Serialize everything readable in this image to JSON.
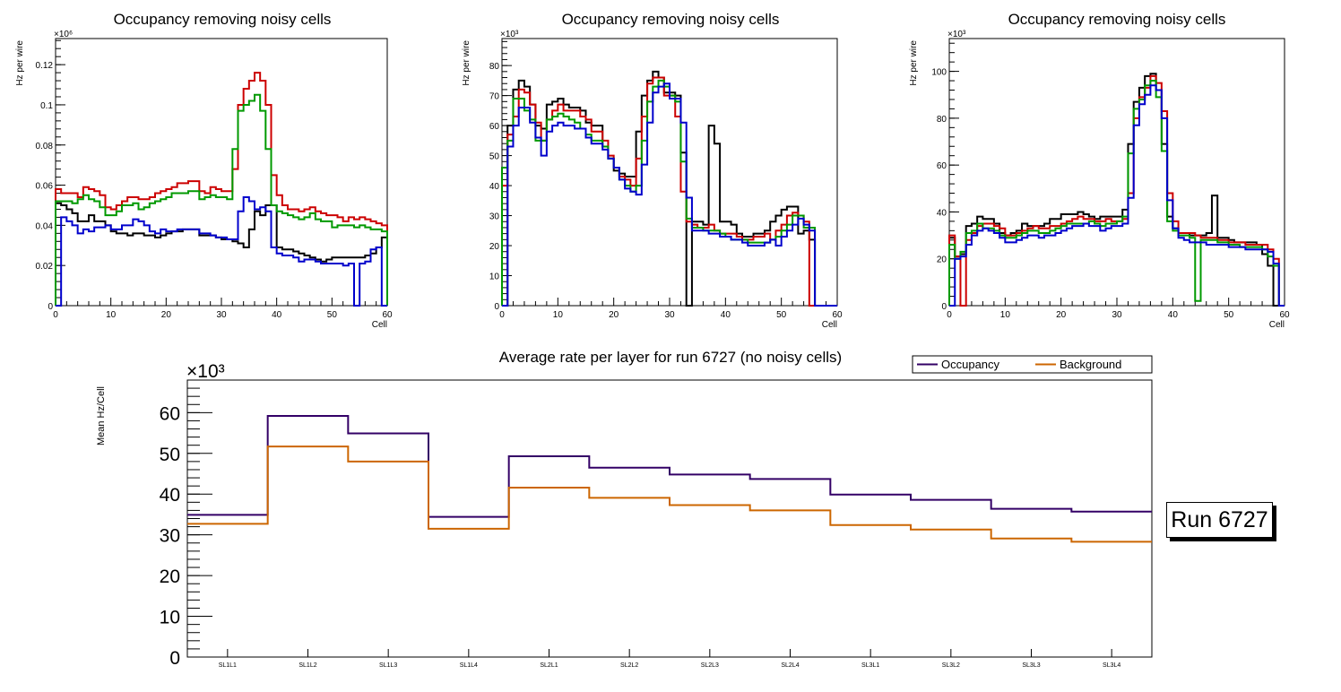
{
  "chart_data": [
    {
      "type": "line",
      "subtype": "step-histogram",
      "title": "Occupancy removing noisy cells",
      "xlabel": "Cell",
      "ylabel": "Hz per wire",
      "y_multiplier_label": "×10⁶",
      "xlim": [
        0,
        60
      ],
      "ylim": [
        0,
        0.133
      ],
      "x_ticks": [
        0,
        10,
        20,
        30,
        40,
        50,
        60
      ],
      "y_ticks": [
        0,
        0.02,
        0.04,
        0.06,
        0.08,
        0.1,
        0.12
      ],
      "y_tick_labels": [
        "0",
        "0.02",
        "0.04",
        "0.06",
        "0.08",
        "0.1",
        "0.12"
      ],
      "series": [
        {
          "name": "black",
          "color": "#000000",
          "values": [
            0.051,
            0.05,
            0.048,
            0.046,
            0.042,
            0.042,
            0.045,
            0.042,
            0.042,
            0.04,
            0.037,
            0.036,
            0.036,
            0.035,
            0.036,
            0.036,
            0.035,
            0.035,
            0.034,
            0.035,
            0.036,
            0.037,
            0.037,
            0.038,
            0.038,
            0.038,
            0.035,
            0.035,
            0.035,
            0.034,
            0.033,
            0.033,
            0.032,
            0.031,
            0.029,
            0.038,
            0.047,
            0.045,
            0.05,
            0.05,
            0.029,
            0.028,
            0.028,
            0.027,
            0.026,
            0.025,
            0.024,
            0.023,
            0.022,
            0.023,
            0.024,
            0.024,
            0.024,
            0.024,
            0.024,
            0.024,
            0.025,
            0.026,
            0.029,
            0.034
          ]
        },
        {
          "name": "red",
          "color": "#cc0000",
          "values": [
            0.058,
            0.056,
            0.056,
            0.056,
            0.054,
            0.059,
            0.058,
            0.057,
            0.055,
            0.049,
            0.048,
            0.05,
            0.052,
            0.054,
            0.054,
            0.053,
            0.053,
            0.054,
            0.056,
            0.057,
            0.058,
            0.059,
            0.061,
            0.061,
            0.062,
            0.062,
            0.057,
            0.056,
            0.059,
            0.058,
            0.057,
            0.057,
            0.068,
            0.1,
            0.108,
            0.112,
            0.116,
            0.112,
            0.1,
            0.065,
            0.055,
            0.05,
            0.048,
            0.048,
            0.047,
            0.048,
            0.049,
            0.047,
            0.046,
            0.045,
            0.045,
            0.044,
            0.042,
            0.044,
            0.043,
            0.044,
            0.043,
            0.042,
            0.041,
            0.04
          ]
        },
        {
          "name": "green",
          "color": "#009900",
          "values": [
            0.052,
            0.052,
            0.052,
            0.051,
            0.053,
            0.055,
            0.053,
            0.052,
            0.049,
            0.045,
            0.045,
            0.047,
            0.05,
            0.05,
            0.051,
            0.048,
            0.049,
            0.051,
            0.052,
            0.053,
            0.054,
            0.056,
            0.056,
            0.056,
            0.057,
            0.057,
            0.053,
            0.054,
            0.055,
            0.054,
            0.054,
            0.053,
            0.078,
            0.097,
            0.1,
            0.102,
            0.105,
            0.097,
            0.078,
            0.05,
            0.047,
            0.046,
            0.045,
            0.044,
            0.043,
            0.044,
            0.046,
            0.043,
            0.042,
            0.042,
            0.039,
            0.04,
            0.04,
            0.04,
            0.039,
            0.04,
            0.039,
            0.038,
            0.038,
            0.037
          ]
        },
        {
          "name": "blue",
          "color": "#0000cc",
          "values": [
            0.0,
            0.044,
            0.042,
            0.04,
            0.036,
            0.038,
            0.037,
            0.039,
            0.039,
            0.04,
            0.038,
            0.038,
            0.04,
            0.04,
            0.043,
            0.042,
            0.04,
            0.037,
            0.036,
            0.038,
            0.037,
            0.037,
            0.038,
            0.038,
            0.038,
            0.038,
            0.036,
            0.036,
            0.035,
            0.034,
            0.034,
            0.033,
            0.033,
            0.047,
            0.054,
            0.052,
            0.048,
            0.049,
            0.047,
            0.029,
            0.026,
            0.025,
            0.025,
            0.024,
            0.022,
            0.023,
            0.023,
            0.022,
            0.021,
            0.021,
            0.021,
            0.021,
            0.02,
            0.021,
            0.0,
            0.021,
            0.022,
            0.028,
            0.029,
            0.0
          ]
        }
      ]
    },
    {
      "type": "line",
      "subtype": "step-histogram",
      "title": "Occupancy removing noisy cells",
      "xlabel": "Cell",
      "ylabel": "Hz per wire",
      "y_multiplier_label": "×10³",
      "xlim": [
        0,
        60
      ],
      "ylim": [
        0,
        89
      ],
      "x_ticks": [
        0,
        10,
        20,
        30,
        40,
        50,
        60
      ],
      "y_ticks": [
        0,
        10,
        20,
        30,
        40,
        50,
        60,
        70,
        80
      ],
      "y_tick_labels": [
        "0",
        "10",
        "20",
        "30",
        "40",
        "50",
        "60",
        "70",
        "80"
      ],
      "series": [
        {
          "name": "black",
          "color": "#000000",
          "values": [
            0,
            60,
            72,
            75,
            73,
            67,
            60,
            59,
            67,
            68,
            69,
            67,
            66,
            66,
            65,
            61,
            60,
            60,
            53,
            49,
            45,
            44,
            43,
            43,
            58,
            70,
            75,
            78,
            76,
            71,
            71,
            70,
            51,
            0,
            28,
            28,
            27,
            60,
            54,
            28,
            28,
            27,
            24,
            23,
            23,
            24,
            24,
            25,
            28,
            30,
            32,
            33,
            33,
            24,
            25,
            22,
            0,
            0,
            0,
            0
          ]
        },
        {
          "name": "red",
          "color": "#cc0000",
          "values": [
            40,
            57,
            63,
            72,
            71,
            67,
            61,
            55,
            62,
            65,
            67,
            65,
            65,
            65,
            63,
            62,
            58,
            58,
            55,
            50,
            46,
            43,
            42,
            40,
            49,
            63,
            74,
            76,
            76,
            70,
            70,
            63,
            38,
            28,
            27,
            26,
            26,
            27,
            25,
            24,
            24,
            24,
            23,
            22,
            22,
            23,
            23,
            24,
            22,
            25,
            27,
            30,
            31,
            30,
            28,
            0,
            0,
            0,
            0,
            0
          ]
        },
        {
          "name": "green",
          "color": "#009900",
          "values": [
            46,
            55,
            69,
            69,
            65,
            62,
            55,
            55,
            62,
            63,
            64,
            63,
            62,
            61,
            59,
            57,
            55,
            55,
            53,
            49,
            46,
            42,
            40,
            38,
            40,
            55,
            68,
            73,
            75,
            73,
            70,
            68,
            48,
            29,
            26,
            26,
            25,
            25,
            25,
            24,
            23,
            22,
            22,
            22,
            21,
            21,
            21,
            21,
            22,
            23,
            25,
            27,
            30,
            30,
            26,
            26,
            0,
            0,
            0,
            0
          ]
        },
        {
          "name": "blue",
          "color": "#0000cc",
          "values": [
            0,
            53,
            60,
            66,
            66,
            61,
            56,
            50,
            58,
            60,
            61,
            60,
            60,
            59,
            59,
            56,
            54,
            54,
            52,
            49,
            46,
            42,
            39,
            38,
            37,
            47,
            61,
            71,
            73,
            74,
            69,
            69,
            61,
            36,
            25,
            25,
            25,
            24,
            24,
            23,
            23,
            22,
            22,
            21,
            20,
            20,
            20,
            21,
            22,
            20,
            23,
            25,
            27,
            29,
            27,
            25,
            0,
            0,
            0,
            0
          ]
        }
      ]
    },
    {
      "type": "line",
      "subtype": "step-histogram",
      "title": "Occupancy removing noisy cells",
      "xlabel": "Cell",
      "ylabel": "Hz per wire",
      "y_multiplier_label": "×10³",
      "xlim": [
        0,
        60
      ],
      "ylim": [
        0,
        114
      ],
      "x_ticks": [
        0,
        10,
        20,
        30,
        40,
        50,
        60
      ],
      "y_ticks": [
        0,
        20,
        40,
        60,
        80,
        100
      ],
      "y_tick_labels": [
        "0",
        "20",
        "40",
        "60",
        "80",
        "100"
      ],
      "series": [
        {
          "name": "black",
          "color": "#000000",
          "values": [
            29,
            21,
            22,
            34,
            35,
            38,
            37,
            37,
            35,
            31,
            30,
            31,
            32,
            35,
            34,
            34,
            34,
            35,
            37,
            37,
            39,
            39,
            39,
            40,
            39,
            38,
            37,
            38,
            38,
            38,
            38,
            41,
            69,
            87,
            93,
            98,
            99,
            92,
            69,
            38,
            33,
            31,
            31,
            30,
            30,
            30,
            31,
            47,
            29,
            29,
            28,
            27,
            27,
            27,
            27,
            26,
            22,
            17,
            0,
            0
          ]
        },
        {
          "name": "red",
          "color": "#cc0000",
          "values": [
            30,
            21,
            0,
            28,
            31,
            34,
            35,
            35,
            34,
            33,
            30,
            30,
            31,
            32,
            33,
            34,
            33,
            33,
            34,
            34,
            35,
            36,
            37,
            38,
            37,
            37,
            36,
            36,
            37,
            36,
            36,
            37,
            48,
            80,
            89,
            93,
            98,
            95,
            83,
            48,
            36,
            31,
            31,
            31,
            30,
            29,
            29,
            29,
            28,
            28,
            27,
            27,
            27,
            26,
            26,
            26,
            26,
            24,
            20,
            0
          ]
        },
        {
          "name": "green",
          "color": "#009900",
          "values": [
            26,
            20,
            23,
            31,
            32,
            35,
            33,
            33,
            32,
            30,
            29,
            29,
            30,
            31,
            32,
            32,
            31,
            31,
            32,
            33,
            34,
            35,
            35,
            35,
            35,
            36,
            35,
            34,
            35,
            35,
            36,
            38,
            65,
            84,
            88,
            94,
            96,
            89,
            66,
            36,
            32,
            30,
            30,
            29,
            2,
            28,
            28,
            28,
            27,
            27,
            26,
            26,
            25,
            25,
            25,
            25,
            24,
            21,
            17,
            0
          ]
        },
        {
          "name": "blue",
          "color": "#0000cc",
          "values": [
            0,
            20,
            21,
            26,
            30,
            32,
            33,
            32,
            31,
            29,
            27,
            27,
            28,
            29,
            30,
            30,
            29,
            30,
            30,
            31,
            32,
            33,
            34,
            34,
            35,
            34,
            34,
            32,
            33,
            34,
            34,
            35,
            46,
            77,
            86,
            90,
            94,
            92,
            80,
            45,
            33,
            29,
            28,
            27,
            27,
            27,
            26,
            26,
            26,
            26,
            25,
            25,
            25,
            24,
            24,
            24,
            24,
            23,
            18,
            0
          ]
        }
      ]
    },
    {
      "type": "line",
      "subtype": "step",
      "title": "Average rate per layer for run 6727 (no noisy cells)",
      "xlabel": "",
      "ylabel": "Mean Hz/Cell",
      "y_multiplier_label": "×10³",
      "categories": [
        "SL1L1",
        "SL1L2",
        "SL1L3",
        "SL1L4",
        "SL2L1",
        "SL2L2",
        "SL2L3",
        "SL2L4",
        "SL3L1",
        "SL3L2",
        "SL3L3",
        "SL3L4"
      ],
      "ylim": [
        0,
        68
      ],
      "y_ticks": [
        0,
        10,
        20,
        30,
        40,
        50,
        60
      ],
      "y_tick_labels": [
        "0",
        "10",
        "20",
        "30",
        "40",
        "50",
        "60"
      ],
      "legend": "top-right",
      "series": [
        {
          "name": "Occupancy",
          "color": "#330066",
          "values": [
            34.9,
            59.2,
            54.9,
            34.4,
            49.3,
            46.5,
            44.8,
            43.7,
            39.9,
            38.6,
            36.4,
            35.7
          ]
        },
        {
          "name": "Background",
          "color": "#cc6600",
          "values": [
            32.7,
            51.7,
            48.0,
            31.5,
            41.6,
            39.1,
            37.3,
            36.0,
            32.4,
            31.3,
            29.1,
            28.3
          ]
        }
      ]
    }
  ],
  "run_label": "Run 6727"
}
